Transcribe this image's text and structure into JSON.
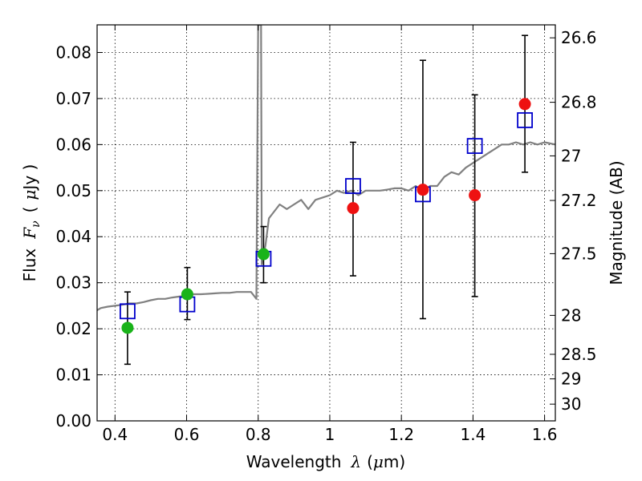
{
  "chart_data": {
    "type": "scatter",
    "xlabel": "Wavelength",
    "xlabel_symbol": "λ",
    "xlabel_unit_open": "(",
    "xlabel_unit_mu": "μ",
    "xlabel_unit_rest": "m)",
    "ylabel": "Flux",
    "ylabel_symbol": "F",
    "ylabel_subscript": "ν",
    "ylabel_unit_open": "(",
    "ylabel_unit_mu": "μ",
    "ylabel_unit_rest": "Jy )",
    "y2label": "Magnitude (AB)",
    "xlim": [
      0.35,
      1.63
    ],
    "ylim": [
      0.0,
      0.086
    ],
    "grid": true,
    "x_ticks": [
      {
        "value": 0.4,
        "label": "0.4"
      },
      {
        "value": 0.6,
        "label": "0.6"
      },
      {
        "value": 0.8,
        "label": "0.8"
      },
      {
        "value": 1.0,
        "label": "1"
      },
      {
        "value": 1.2,
        "label": "1.2"
      },
      {
        "value": 1.4,
        "label": "1.4"
      },
      {
        "value": 1.6,
        "label": "1.6"
      }
    ],
    "y_ticks": [
      {
        "value": 0.0,
        "label": "0.00"
      },
      {
        "value": 0.01,
        "label": "0.01"
      },
      {
        "value": 0.02,
        "label": "0.02"
      },
      {
        "value": 0.03,
        "label": "0.03"
      },
      {
        "value": 0.04,
        "label": "0.04"
      },
      {
        "value": 0.05,
        "label": "0.05"
      },
      {
        "value": 0.06,
        "label": "0.06"
      },
      {
        "value": 0.07,
        "label": "0.07"
      },
      {
        "value": 0.08,
        "label": "0.08"
      }
    ],
    "y2_ticks": [
      {
        "mag": 26.6,
        "label": "26.6"
      },
      {
        "mag": 26.8,
        "label": "26.8"
      },
      {
        "mag": 27.0,
        "label": "27"
      },
      {
        "mag": 27.2,
        "label": "27.2"
      },
      {
        "mag": 27.5,
        "label": "27.5"
      },
      {
        "mag": 28.0,
        "label": "28"
      },
      {
        "mag": 28.5,
        "label": "28.5"
      },
      {
        "mag": 29.0,
        "label": "29"
      },
      {
        "mag": 30.0,
        "label": "30"
      }
    ],
    "colors": {
      "spectrum": "#808080",
      "green": "#19b319",
      "red": "#ee1111",
      "model_box": "#0000cc",
      "errorbar": "#000000",
      "grid": "#000000"
    },
    "spectrum": {
      "name": "model spectrum",
      "x": [
        0.35,
        0.36,
        0.38,
        0.4,
        0.42,
        0.44,
        0.46,
        0.48,
        0.5,
        0.52,
        0.54,
        0.56,
        0.58,
        0.6,
        0.62,
        0.64,
        0.66,
        0.68,
        0.7,
        0.72,
        0.74,
        0.76,
        0.78,
        0.795,
        0.8,
        0.802,
        0.804,
        0.806,
        0.808,
        0.81,
        0.82,
        0.83,
        0.84,
        0.86,
        0.88,
        0.9,
        0.92,
        0.94,
        0.96,
        0.98,
        1.0,
        1.02,
        1.04,
        1.06,
        1.08,
        1.1,
        1.12,
        1.14,
        1.16,
        1.18,
        1.2,
        1.22,
        1.24,
        1.26,
        1.28,
        1.3,
        1.32,
        1.34,
        1.36,
        1.38,
        1.4,
        1.42,
        1.44,
        1.46,
        1.48,
        1.5,
        1.52,
        1.54,
        1.56,
        1.58,
        1.6,
        1.63
      ],
      "y": [
        0.024,
        0.0245,
        0.0248,
        0.025,
        0.0252,
        0.0255,
        0.0255,
        0.0258,
        0.0262,
        0.0265,
        0.0265,
        0.0268,
        0.027,
        0.0272,
        0.0275,
        0.0275,
        0.0276,
        0.0277,
        0.0278,
        0.0278,
        0.028,
        0.028,
        0.028,
        0.0265,
        0.086,
        0.086,
        0.086,
        0.086,
        0.086,
        0.034,
        0.038,
        0.044,
        0.045,
        0.047,
        0.046,
        0.047,
        0.048,
        0.046,
        0.048,
        0.0485,
        0.049,
        0.05,
        0.0495,
        0.05,
        0.049,
        0.05,
        0.05,
        0.05,
        0.0502,
        0.0505,
        0.0505,
        0.05,
        0.051,
        0.05,
        0.051,
        0.051,
        0.053,
        0.054,
        0.0535,
        0.055,
        0.056,
        0.057,
        0.058,
        0.059,
        0.06,
        0.06,
        0.0605,
        0.06,
        0.0605,
        0.06,
        0.0605,
        0.06
      ]
    },
    "points": [
      {
        "x": 0.435,
        "y": 0.0202,
        "color": "green",
        "err_low": 0.0123,
        "err_high": 0.028
      },
      {
        "x": 0.602,
        "y": 0.0275,
        "color": "green",
        "err_low": 0.022,
        "err_high": 0.0333
      },
      {
        "x": 0.815,
        "y": 0.0362,
        "color": "green",
        "err_low": 0.03,
        "err_high": 0.0422
      },
      {
        "x": 1.065,
        "y": 0.0462,
        "color": "red",
        "err_low": 0.0315,
        "err_high": 0.0605
      },
      {
        "x": 1.26,
        "y": 0.0502,
        "color": "red",
        "err_low": 0.0222,
        "err_high": 0.0783
      },
      {
        "x": 1.405,
        "y": 0.049,
        "color": "red",
        "err_low": 0.027,
        "err_high": 0.0708
      },
      {
        "x": 1.545,
        "y": 0.0688,
        "color": "red",
        "err_low": 0.054,
        "err_high": 0.0837
      }
    ],
    "model_boxes": [
      {
        "x": 0.435,
        "y": 0.0238
      },
      {
        "x": 0.602,
        "y": 0.0253
      },
      {
        "x": 0.815,
        "y": 0.0352
      },
      {
        "x": 1.065,
        "y": 0.051
      },
      {
        "x": 1.26,
        "y": 0.0492
      },
      {
        "x": 1.405,
        "y": 0.0597
      },
      {
        "x": 1.545,
        "y": 0.0653
      }
    ]
  }
}
